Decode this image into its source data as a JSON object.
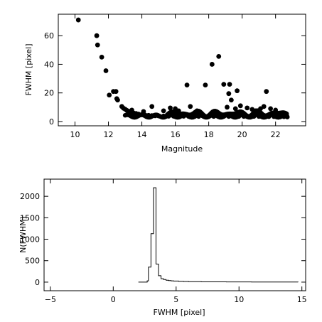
{
  "chart_data": [
    {
      "type": "scatter",
      "xlabel": "Magnitude",
      "ylabel": "FWHM [pixel]",
      "xlim": [
        9,
        23.8
      ],
      "ylim": [
        -3,
        75
      ],
      "xticks": [
        10,
        12,
        14,
        16,
        18,
        20,
        22
      ],
      "yticks": [
        0,
        20,
        40,
        60
      ],
      "marker_color": "#000000",
      "series": [
        {
          "points": [
            [
              10.2,
              71
            ],
            [
              11.3,
              60
            ],
            [
              11.35,
              53.5
            ],
            [
              11.6,
              45
            ],
            [
              11.85,
              35.5
            ],
            [
              12.05,
              18.5
            ],
            [
              12.3,
              21
            ],
            [
              12.45,
              21
            ],
            [
              12.5,
              16
            ],
            [
              12.55,
              15
            ],
            [
              12.8,
              10.5
            ],
            [
              12.9,
              9.3
            ],
            [
              13.0,
              8.6
            ],
            [
              13.1,
              7.8
            ],
            [
              13.2,
              7.2
            ],
            [
              13.35,
              6.6
            ],
            [
              13.5,
              6.0
            ],
            [
              13.65,
              5.6
            ],
            [
              13.8,
              5.2
            ],
            [
              14.0,
              4.8
            ],
            [
              14.2,
              4.5
            ],
            [
              14.4,
              4.3
            ],
            [
              14.6,
              4.1
            ],
            [
              14.8,
              4.0
            ],
            [
              15.0,
              3.9
            ],
            [
              15.3,
              3.8
            ],
            [
              15.6,
              3.7
            ],
            [
              15.9,
              3.7
            ],
            [
              16.2,
              3.7
            ],
            [
              16.5,
              3.7
            ],
            [
              16.8,
              3.6
            ],
            [
              17.1,
              3.6
            ],
            [
              17.4,
              3.6
            ],
            [
              17.7,
              3.6
            ],
            [
              18.0,
              3.6
            ],
            [
              18.3,
              3.6
            ],
            [
              18.6,
              3.6
            ],
            [
              18.9,
              3.6
            ],
            [
              19.2,
              3.6
            ],
            [
              19.5,
              3.6
            ],
            [
              19.8,
              3.6
            ],
            [
              20.1,
              3.6
            ],
            [
              20.4,
              3.6
            ],
            [
              20.7,
              3.6
            ],
            [
              21.0,
              3.6
            ],
            [
              21.3,
              3.5
            ],
            [
              21.6,
              3.5
            ],
            [
              21.9,
              3.5
            ],
            [
              22.2,
              3.5
            ],
            [
              22.5,
              3.4
            ],
            [
              22.7,
              3.2
            ],
            [
              13.4,
              8
            ],
            [
              14.1,
              7
            ],
            [
              14.6,
              10.5
            ],
            [
              15.3,
              7.5
            ],
            [
              15.7,
              9.5
            ],
            [
              16.0,
              9.0
            ],
            [
              16.2,
              7.5
            ],
            [
              16.7,
              25.5
            ],
            [
              16.9,
              10.5
            ],
            [
              17.3,
              7.5
            ],
            [
              17.8,
              25.5
            ],
            [
              18.2,
              40
            ],
            [
              18.3,
              7
            ],
            [
              18.6,
              45.5
            ],
            [
              18.9,
              26
            ],
            [
              19.1,
              10
            ],
            [
              19.2,
              19.5
            ],
            [
              19.25,
              26
            ],
            [
              19.35,
              15
            ],
            [
              19.6,
              9
            ],
            [
              19.7,
              21.5
            ],
            [
              19.9,
              11
            ],
            [
              20.3,
              9.5
            ],
            [
              20.6,
              8.5
            ],
            [
              20.8,
              7.5
            ],
            [
              21.1,
              9
            ],
            [
              21.3,
              10.5
            ],
            [
              21.45,
              21
            ],
            [
              21.7,
              9
            ],
            [
              22.0,
              8
            ]
          ]
        }
      ]
    },
    {
      "type": "line",
      "xlabel": "FWHM [pixel]",
      "ylabel": "N(FWHM)",
      "xlim": [
        -5.5,
        15.3
      ],
      "ylim": [
        -200,
        2400
      ],
      "xticks": [
        -5,
        0,
        5,
        10,
        15
      ],
      "yticks": [
        0,
        500,
        1000,
        1500,
        2000
      ],
      "step": true,
      "line_color": "#000000",
      "series": [
        {
          "x": [
            2.0,
            2.7,
            2.8,
            3.0,
            3.2,
            3.4,
            3.6,
            3.8,
            4.0,
            4.2,
            4.4,
            4.6,
            4.8,
            5.2,
            5.6,
            6.0,
            7.0,
            8.0,
            9.0,
            10.0,
            11.0,
            12.0,
            13.0,
            14.0,
            14.7
          ],
          "y": [
            0,
            30,
            350,
            1130,
            2200,
            420,
            150,
            80,
            60,
            45,
            35,
            30,
            25,
            20,
            15,
            12,
            8,
            6,
            5,
            4,
            3,
            3,
            2,
            2,
            0
          ]
        }
      ]
    }
  ]
}
